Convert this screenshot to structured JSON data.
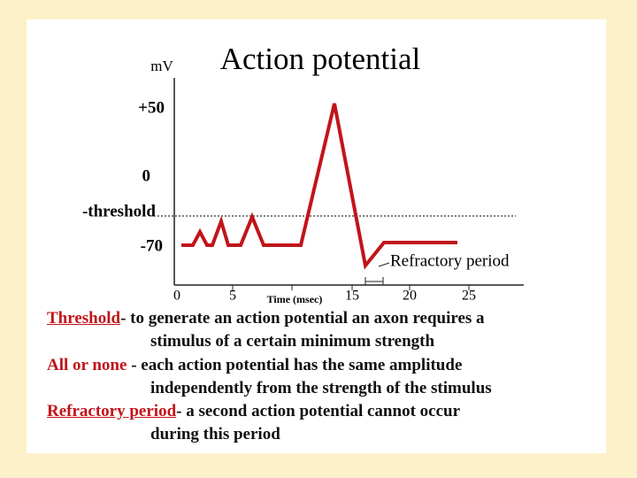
{
  "title": "Action potential",
  "y_unit": "mV",
  "y_labels": [
    "+50",
    "0",
    "-threshold",
    "-70"
  ],
  "x_labels": [
    "0",
    "5",
    "15",
    "20",
    "25"
  ],
  "x_axis_label": "Time (msec)",
  "annotation": "Refractory period",
  "definitions": [
    {
      "term": "Threshold",
      "text": "- to generate an action potential an axon requires a",
      "continuation": "stimulus of a certain minimum strength"
    },
    {
      "term": "All or none",
      "text": " - each action potential has the same amplitude",
      "continuation": "independently from the strength of the stimulus"
    },
    {
      "term": "Refractory period",
      "text": "- a second action potential cannot occur",
      "continuation": "during this period"
    }
  ]
}
